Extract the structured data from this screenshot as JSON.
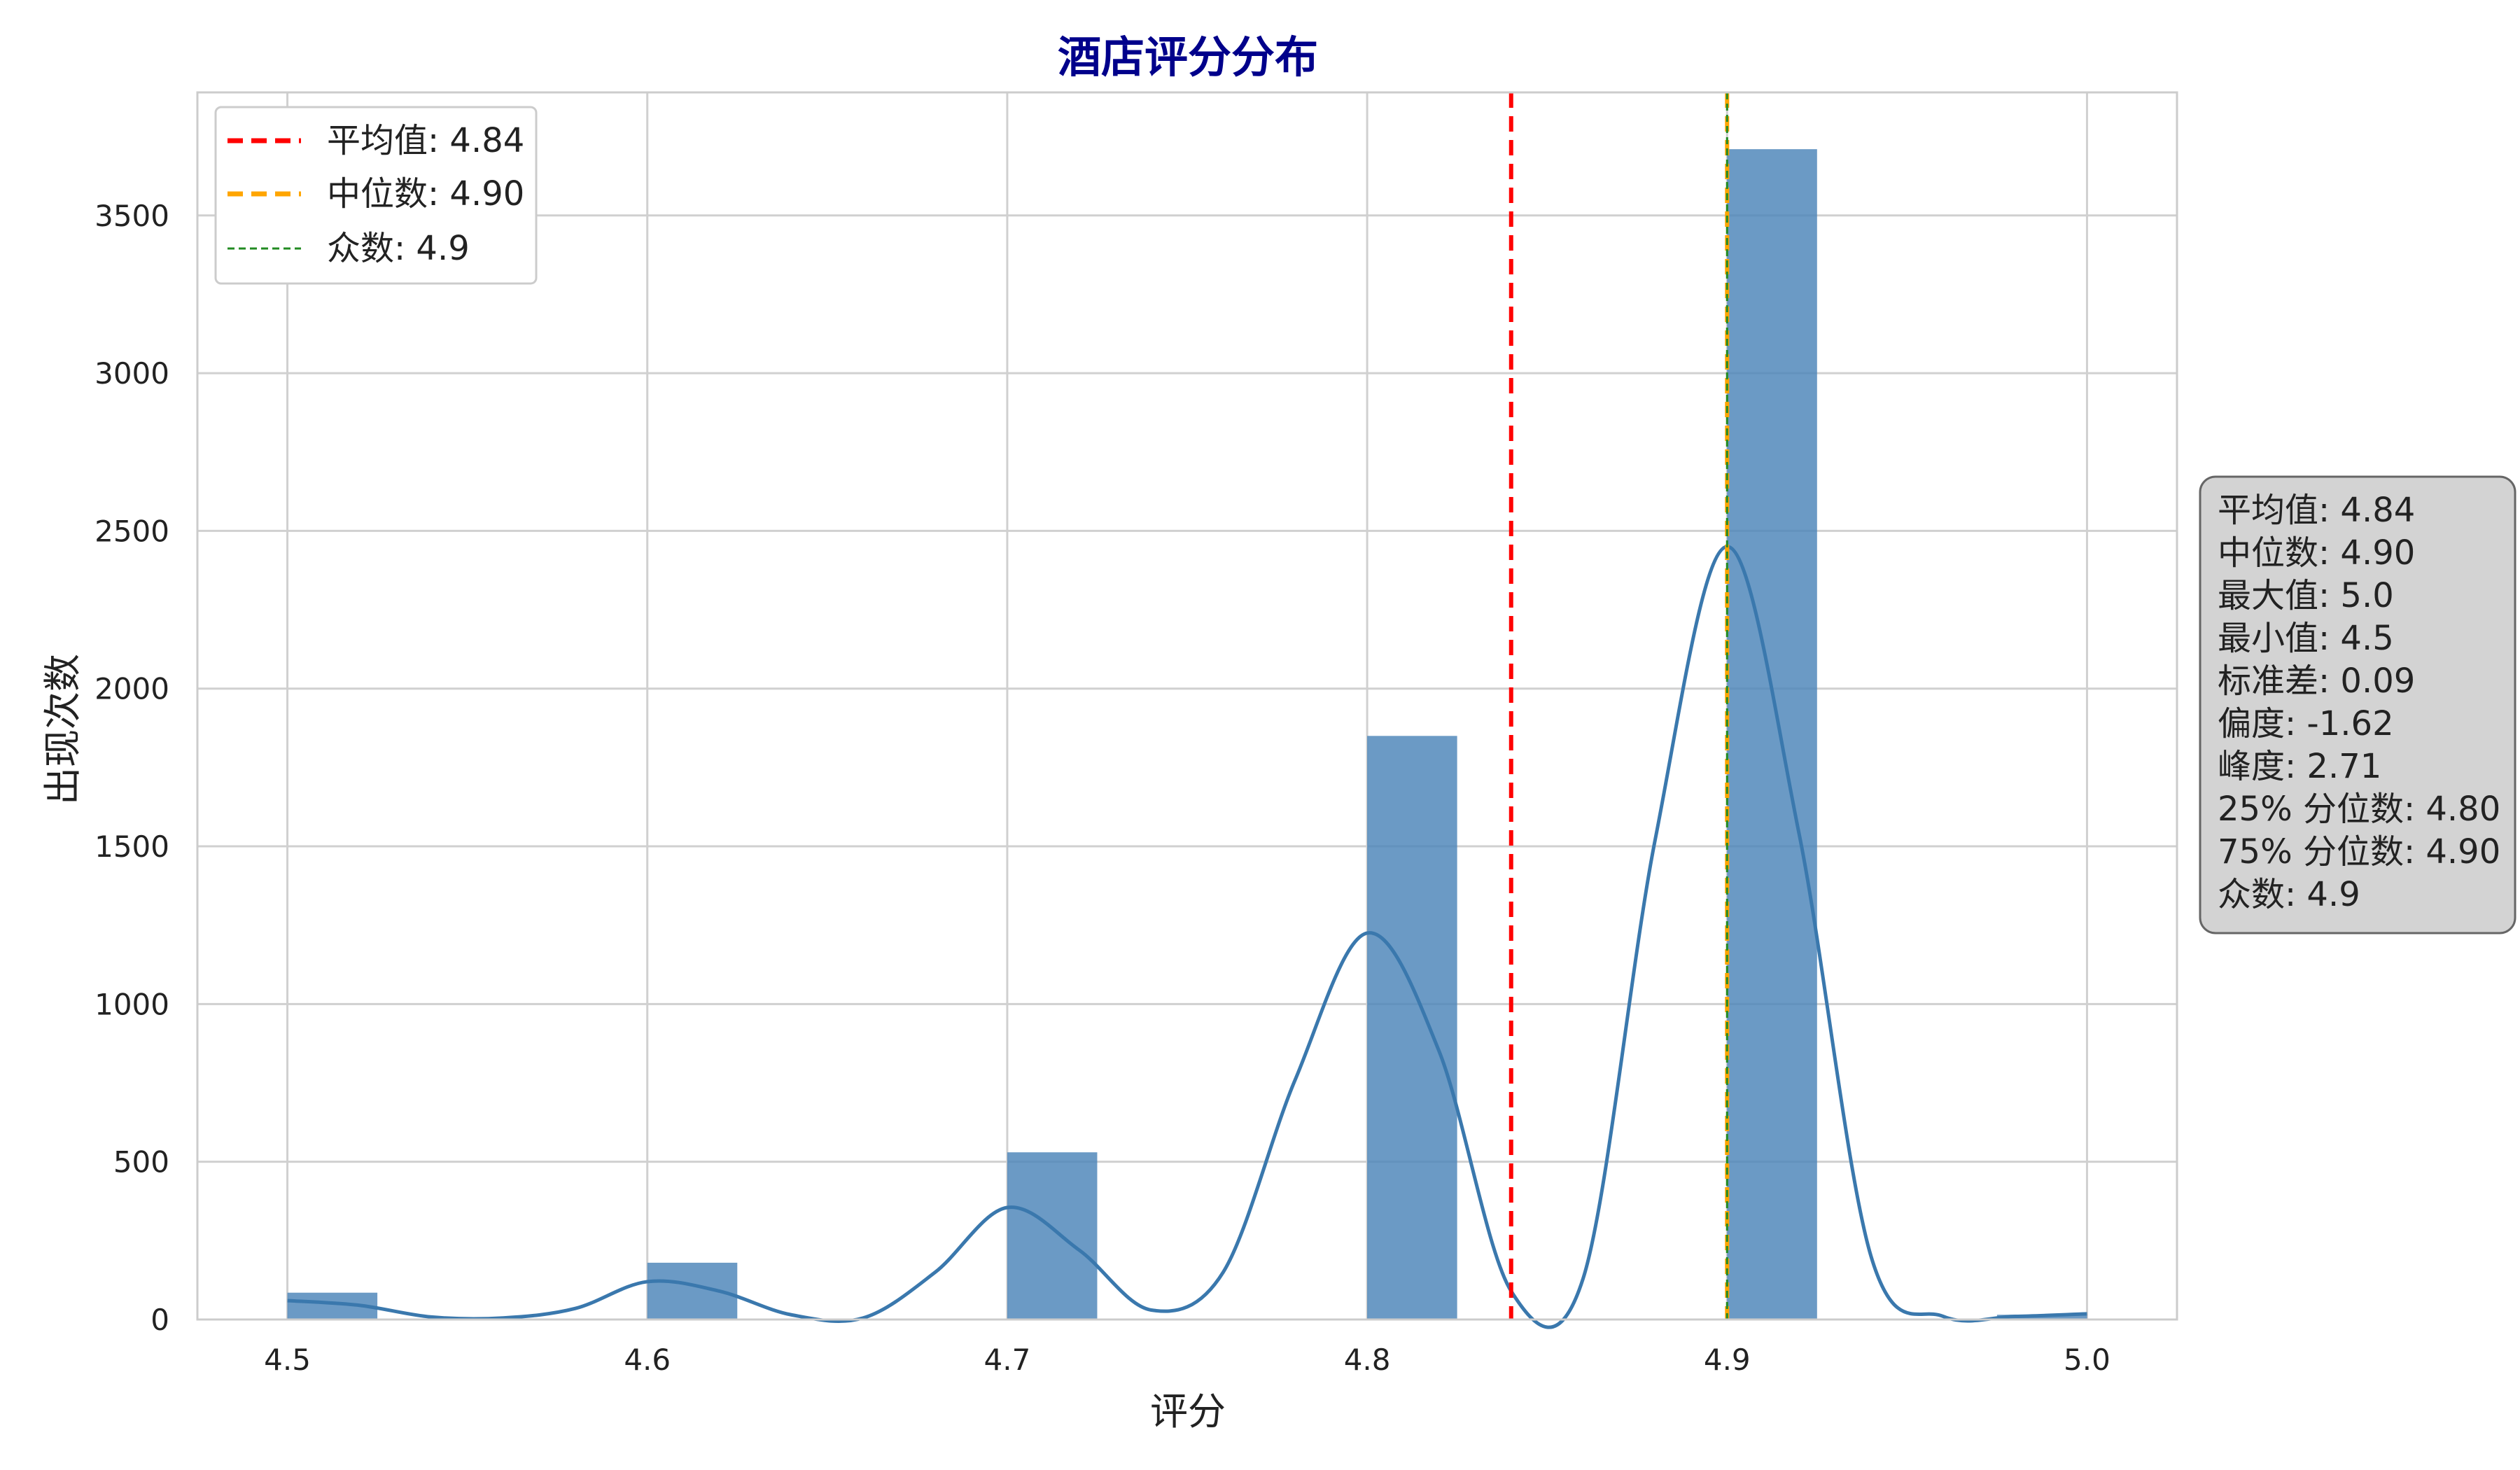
{
  "chart_data": {
    "type": "bar",
    "title": "酒店评分分布",
    "xlabel": "评分",
    "ylabel": "出现次数",
    "xlim": [
      4.475,
      5.025
    ],
    "ylim": [
      0,
      3890
    ],
    "x_ticks": [
      "4.5",
      "4.6",
      "4.7",
      "4.8",
      "4.9",
      "5.0"
    ],
    "y_ticks": [
      "0",
      "500",
      "1000",
      "1500",
      "2000",
      "2500",
      "3000",
      "3500"
    ],
    "grid": true,
    "bin_width": 0.025,
    "bins": [
      {
        "x": 4.5,
        "value": 85
      },
      {
        "x": 4.6,
        "value": 180
      },
      {
        "x": 4.7,
        "value": 530
      },
      {
        "x": 4.8,
        "value": 1850
      },
      {
        "x": 4.9,
        "value": 3710
      },
      {
        "x": 4.975,
        "value": 15
      }
    ],
    "kde_points": [
      [
        4.5,
        60
      ],
      [
        4.52,
        45
      ],
      [
        4.54,
        8
      ],
      [
        4.56,
        5
      ],
      [
        4.58,
        35
      ],
      [
        4.6,
        120
      ],
      [
        4.62,
        90
      ],
      [
        4.64,
        15
      ],
      [
        4.66,
        5
      ],
      [
        4.68,
        150
      ],
      [
        4.7,
        355
      ],
      [
        4.72,
        220
      ],
      [
        4.74,
        30
      ],
      [
        4.76,
        150
      ],
      [
        4.78,
        760
      ],
      [
        4.8,
        1225
      ],
      [
        4.82,
        850
      ],
      [
        4.84,
        90
      ],
      [
        4.86,
        130
      ],
      [
        4.88,
        1520
      ],
      [
        4.9,
        2450
      ],
      [
        4.92,
        1540
      ],
      [
        4.94,
        200
      ],
      [
        4.96,
        10
      ],
      [
        4.98,
        10
      ],
      [
        5.0,
        18
      ]
    ],
    "ref_lines": [
      {
        "name": "平均值: 4.84",
        "value": 4.84,
        "color": "#ff0000",
        "style": "dashed-thick"
      },
      {
        "name": "中位数: 4.90",
        "value": 4.9,
        "color": "#ffa500",
        "style": "dashed-thick"
      },
      {
        "name": "众数: 4.9",
        "value": 4.9,
        "color": "#228b22",
        "style": "dashed-thin"
      }
    ],
    "legend_position": "top-left",
    "stats_box": [
      "平均值: 4.84",
      "中位数: 4.90",
      "最大值: 5.0",
      "最小值: 4.5",
      "标准差: 0.09",
      "偏度: -1.62",
      "峰度: 2.71",
      "25% 分位数: 4.80",
      "75% 分位数: 4.90",
      "众数: 4.9"
    ],
    "colors": {
      "bar": "#4a84b8",
      "kde": "#3a78ad",
      "title": "#00008b",
      "grid": "#d0d0d0",
      "stats_bg": "#d3d3d3"
    }
  }
}
